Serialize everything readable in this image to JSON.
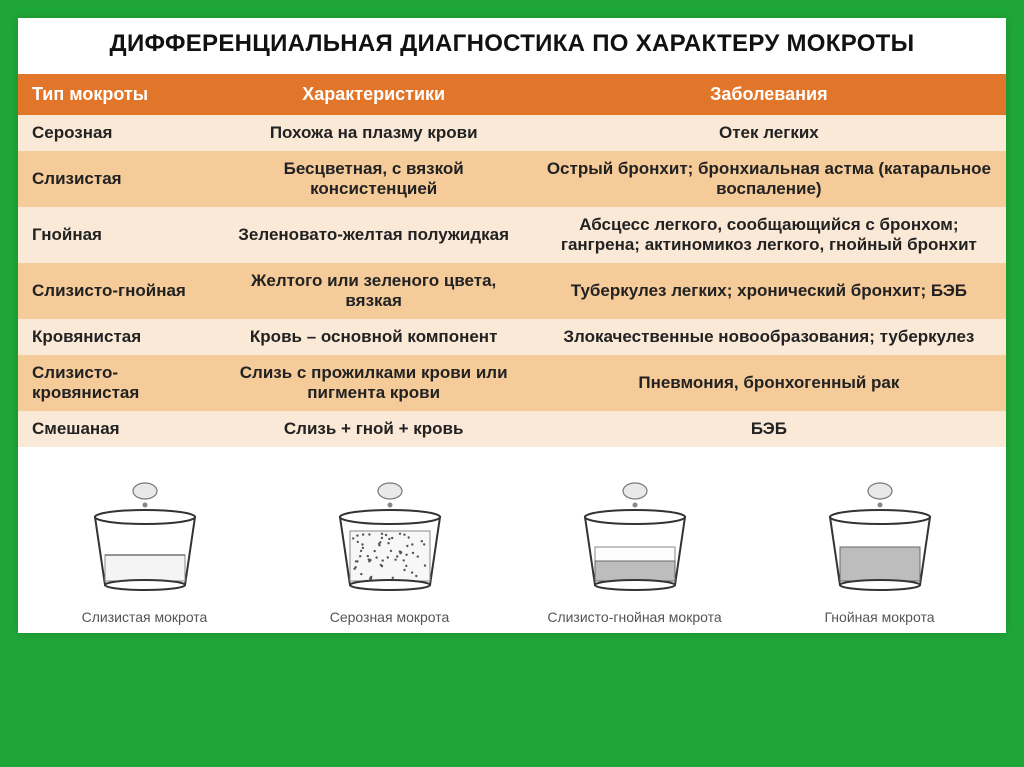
{
  "title": "ДИФФЕРЕНЦИАЛЬНАЯ ДИАГНОСТИКА ПО ХАРАКТЕРУ МОКРОТЫ",
  "table": {
    "header_bg": "#e1762b",
    "row_alt_light": "#fbe9d7",
    "row_alt_mid": "#f5cb9a",
    "columns": [
      {
        "label": "Тип мокроты",
        "width": "20%"
      },
      {
        "label": "Характеристики",
        "width": "32%"
      },
      {
        "label": "Заболевания",
        "width": "48%"
      }
    ],
    "rows": [
      {
        "type": "Серозная",
        "char": "Похожа на плазму крови",
        "disease": "Отек легких",
        "bg": "#fbe9d7"
      },
      {
        "type": "Слизистая",
        "char": "Бесцветная, с вязкой консистенцией",
        "disease": "Острый бронхит; бронхиальная астма (катаральное воспаление)",
        "bg": "#f5cb9a"
      },
      {
        "type": "Гнойная",
        "char": "Зеленовато-желтая полужидкая",
        "disease": "Абсцесс легкого, сообщающийся с бронхом; гангрена; актиномикоз легкого,  гнойный бронхит",
        "bg": "#fbe9d7"
      },
      {
        "type": "Слизисто-гнойная",
        "char": "Желтого или зеленого цвета, вязкая",
        "disease": "Туберкулез легких; хронический бронхит; БЭБ",
        "bg": "#f5cb9a"
      },
      {
        "type": "Кровянистая",
        "char": "Кровь – основной компонент",
        "disease": "Злокачественные новообразования; туберкулез",
        "bg": "#fbe9d7"
      },
      {
        "type": "Слизисто-кровянистая",
        "char": "Слизь с прожилками крови или пигмента крови",
        "disease": "Пневмония, бронхогенный рак",
        "bg": "#f5cb9a"
      },
      {
        "type": "Смешаная",
        "char": "Слизь + гной + кровь",
        "disease": "БЭБ",
        "bg": "#fbe9d7"
      }
    ]
  },
  "illustrations": [
    {
      "caption": "Слизистая мокрота",
      "variant": "clear"
    },
    {
      "caption": "Серозная мокрота",
      "variant": "foamy"
    },
    {
      "caption": "Слизисто-гнойная мокрота",
      "variant": "layered"
    },
    {
      "caption": "Гнойная мокрота",
      "variant": "gray"
    }
  ],
  "style": {
    "page_bg": "#1fa638",
    "panel_bg": "#ffffff",
    "title_fontsize": 24,
    "header_fontsize": 18,
    "cell_fontsize": 17,
    "caption_fontsize": 14,
    "caption_color": "#555555",
    "text_color": "#222222",
    "header_text_color": "#ffffff"
  }
}
